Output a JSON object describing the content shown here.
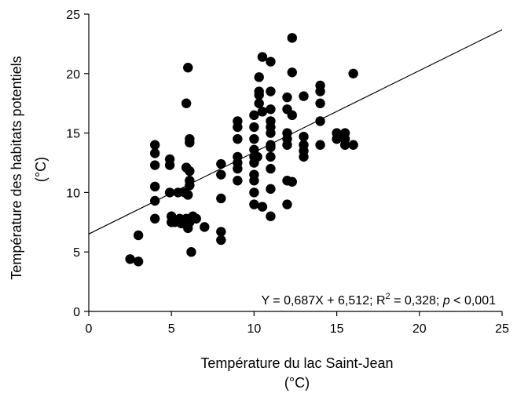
{
  "chart_data": {
    "type": "scatter",
    "title": "",
    "xlabel": "Température du lac Saint-Jean",
    "xlabel_unit": "(°C)",
    "ylabel": "Température des habitats potentiels",
    "ylabel_unit": "(°C)",
    "xlim": [
      0,
      25
    ],
    "ylim": [
      0,
      25
    ],
    "xticks": [
      0,
      5,
      10,
      15,
      20,
      25
    ],
    "yticks": [
      0,
      5,
      10,
      15,
      20,
      25
    ],
    "xtick_labels": [
      "0",
      "5",
      "10",
      "15",
      "20",
      "25"
    ],
    "ytick_labels": [
      "0",
      "5",
      "10",
      "15",
      "20",
      "25"
    ],
    "grid": false,
    "marker_color": "#000000",
    "regression": {
      "slope": 0.687,
      "intercept": 6.512,
      "r_squared": 0.328,
      "equation_text": {
        "prefix": "Y = 0,687X + 6,512; R",
        "sup": "2",
        "middle": " = 0,328; ",
        "p_symbol": "p",
        "suffix": " < 0,001"
      }
    },
    "points": [
      {
        "x": 2.5,
        "y": 4.4
      },
      {
        "x": 3.0,
        "y": 4.2
      },
      {
        "x": 3.0,
        "y": 6.4
      },
      {
        "x": 4.0,
        "y": 7.8
      },
      {
        "x": 4.0,
        "y": 9.3
      },
      {
        "x": 4.0,
        "y": 10.5
      },
      {
        "x": 4.0,
        "y": 12.3
      },
      {
        "x": 4.0,
        "y": 13.3
      },
      {
        "x": 4.0,
        "y": 14.0
      },
      {
        "x": 4.9,
        "y": 10.0
      },
      {
        "x": 4.9,
        "y": 12.3
      },
      {
        "x": 4.9,
        "y": 12.8
      },
      {
        "x": 5.0,
        "y": 7.5
      },
      {
        "x": 5.0,
        "y": 8.0
      },
      {
        "x": 5.2,
        "y": 7.5
      },
      {
        "x": 5.4,
        "y": 10.0
      },
      {
        "x": 5.5,
        "y": 7.8
      },
      {
        "x": 5.6,
        "y": 7.4
      },
      {
        "x": 5.8,
        "y": 10.0
      },
      {
        "x": 5.9,
        "y": 7.8
      },
      {
        "x": 5.9,
        "y": 12.1
      },
      {
        "x": 5.9,
        "y": 17.5
      },
      {
        "x": 6.0,
        "y": 7.0
      },
      {
        "x": 6.0,
        "y": 9.8
      },
      {
        "x": 6.0,
        "y": 20.5
      },
      {
        "x": 6.1,
        "y": 7.5
      },
      {
        "x": 6.1,
        "y": 10.6
      },
      {
        "x": 6.1,
        "y": 11.0
      },
      {
        "x": 6.1,
        "y": 11.8
      },
      {
        "x": 6.1,
        "y": 14.2
      },
      {
        "x": 6.1,
        "y": 14.5
      },
      {
        "x": 6.2,
        "y": 5.0
      },
      {
        "x": 6.3,
        "y": 8.0
      },
      {
        "x": 6.5,
        "y": 7.8
      },
      {
        "x": 7.0,
        "y": 7.1
      },
      {
        "x": 8.0,
        "y": 6.0
      },
      {
        "x": 8.0,
        "y": 6.7
      },
      {
        "x": 8.0,
        "y": 9.5
      },
      {
        "x": 8.0,
        "y": 11.5
      },
      {
        "x": 8.0,
        "y": 12.4
      },
      {
        "x": 9.0,
        "y": 11.0
      },
      {
        "x": 9.0,
        "y": 12.0
      },
      {
        "x": 9.0,
        "y": 12.5
      },
      {
        "x": 9.0,
        "y": 13.0
      },
      {
        "x": 9.0,
        "y": 14.5
      },
      {
        "x": 9.0,
        "y": 15.5
      },
      {
        "x": 9.0,
        "y": 16.0
      },
      {
        "x": 10.0,
        "y": 9.0
      },
      {
        "x": 10.0,
        "y": 10.0
      },
      {
        "x": 10.0,
        "y": 11.0
      },
      {
        "x": 10.0,
        "y": 11.5
      },
      {
        "x": 10.0,
        "y": 12.5
      },
      {
        "x": 10.0,
        "y": 13.0
      },
      {
        "x": 10.0,
        "y": 13.6
      },
      {
        "x": 10.0,
        "y": 14.5
      },
      {
        "x": 10.0,
        "y": 15.5
      },
      {
        "x": 10.0,
        "y": 16.5
      },
      {
        "x": 10.2,
        "y": 13.0
      },
      {
        "x": 10.3,
        "y": 17.5
      },
      {
        "x": 10.3,
        "y": 18.2
      },
      {
        "x": 10.3,
        "y": 18.5
      },
      {
        "x": 10.3,
        "y": 19.7
      },
      {
        "x": 10.5,
        "y": 8.8
      },
      {
        "x": 10.5,
        "y": 16.8
      },
      {
        "x": 10.5,
        "y": 21.4
      },
      {
        "x": 11.0,
        "y": 8.0
      },
      {
        "x": 11.0,
        "y": 10.3
      },
      {
        "x": 11.0,
        "y": 12.0
      },
      {
        "x": 11.0,
        "y": 13.0
      },
      {
        "x": 11.0,
        "y": 13.8
      },
      {
        "x": 11.0,
        "y": 14.0
      },
      {
        "x": 11.0,
        "y": 15.0
      },
      {
        "x": 11.0,
        "y": 15.5
      },
      {
        "x": 11.0,
        "y": 16.0
      },
      {
        "x": 11.0,
        "y": 17.0
      },
      {
        "x": 11.0,
        "y": 18.5
      },
      {
        "x": 11.0,
        "y": 21.0
      },
      {
        "x": 12.0,
        "y": 9.0
      },
      {
        "x": 12.0,
        "y": 11.0
      },
      {
        "x": 12.0,
        "y": 14.0
      },
      {
        "x": 12.0,
        "y": 14.5
      },
      {
        "x": 12.0,
        "y": 15.0
      },
      {
        "x": 12.0,
        "y": 17.0
      },
      {
        "x": 12.0,
        "y": 18.0
      },
      {
        "x": 12.3,
        "y": 10.9
      },
      {
        "x": 12.3,
        "y": 16.5
      },
      {
        "x": 12.3,
        "y": 20.1
      },
      {
        "x": 12.3,
        "y": 23.0
      },
      {
        "x": 13.0,
        "y": 13.0
      },
      {
        "x": 13.0,
        "y": 13.5
      },
      {
        "x": 13.0,
        "y": 14.0
      },
      {
        "x": 13.0,
        "y": 14.7
      },
      {
        "x": 13.0,
        "y": 18.1
      },
      {
        "x": 14.0,
        "y": 14.0
      },
      {
        "x": 14.0,
        "y": 16.0
      },
      {
        "x": 14.0,
        "y": 17.5
      },
      {
        "x": 14.0,
        "y": 18.5
      },
      {
        "x": 14.0,
        "y": 19.0
      },
      {
        "x": 15.0,
        "y": 14.5
      },
      {
        "x": 15.0,
        "y": 15.0
      },
      {
        "x": 15.3,
        "y": 14.7
      },
      {
        "x": 15.5,
        "y": 14.0
      },
      {
        "x": 15.5,
        "y": 14.5
      },
      {
        "x": 15.5,
        "y": 15.0
      },
      {
        "x": 16.0,
        "y": 14.0
      },
      {
        "x": 16.0,
        "y": 20.0
      }
    ]
  }
}
